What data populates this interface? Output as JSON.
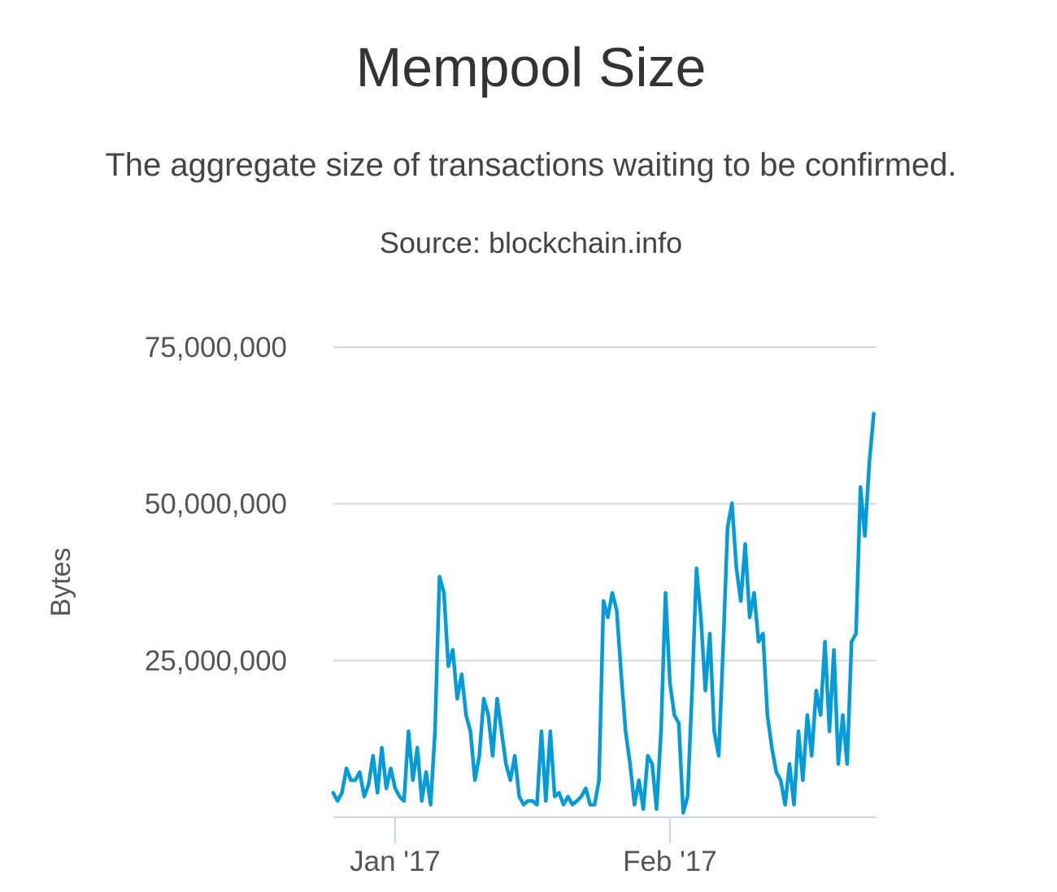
{
  "chart_data": {
    "type": "line",
    "title": "Mempool Size",
    "subtitle": "The aggregate size of transactions waiting to be confirmed.",
    "source": "Source: blockchain.info",
    "xlabel": "",
    "ylabel": "Bytes",
    "ylim": [
      0,
      75000000
    ],
    "yticks": [
      25000000,
      50000000,
      75000000
    ],
    "ytick_labels": [
      "25,000,000",
      "50,000,000",
      "75,000,000"
    ],
    "xlim": [
      "2016-12-25T00",
      "2017-02-24T00"
    ],
    "xticks": [
      "2017-01-01T00",
      "2017-02-01T00"
    ],
    "xtick_labels": [
      "Jan '17",
      "Feb '17"
    ],
    "grid": true,
    "legend": "none",
    "line_color": "#049cd8",
    "series": [
      {
        "points": [
          [
            "2016-12-25T00",
            3900000
          ],
          [
            "2016-12-25T12",
            2600000
          ],
          [
            "2016-12-26T00",
            3900000
          ],
          [
            "2016-12-26T12",
            7800000
          ],
          [
            "2016-12-27T00",
            5900000
          ],
          [
            "2016-12-27T12",
            5900000
          ],
          [
            "2016-12-28T00",
            7200000
          ],
          [
            "2016-12-28T12",
            3300000
          ],
          [
            "2016-12-29T00",
            5200000
          ],
          [
            "2016-12-29T12",
            9800000
          ],
          [
            "2016-12-30T00",
            3900000
          ],
          [
            "2016-12-30T12",
            11100000
          ],
          [
            "2016-12-31T00",
            4600000
          ],
          [
            "2016-12-31T12",
            7800000
          ],
          [
            "2017-01-01T00",
            4600000
          ],
          [
            "2017-01-01T12",
            3300000
          ],
          [
            "2017-01-02T00",
            2600000
          ],
          [
            "2017-01-02T12",
            13700000
          ],
          [
            "2017-01-03T00",
            5900000
          ],
          [
            "2017-01-03T12",
            11100000
          ],
          [
            "2017-01-04T00",
            2600000
          ],
          [
            "2017-01-04T12",
            7200000
          ],
          [
            "2017-01-05T00",
            2000000
          ],
          [
            "2017-01-05T12",
            13700000
          ],
          [
            "2017-01-06T00",
            38400000
          ],
          [
            "2017-01-06T12",
            35800000
          ],
          [
            "2017-01-07T00",
            24100000
          ],
          [
            "2017-01-07T12",
            26700000
          ],
          [
            "2017-01-08T00",
            18900000
          ],
          [
            "2017-01-08T12",
            22800000
          ],
          [
            "2017-01-09T00",
            16300000
          ],
          [
            "2017-01-09T12",
            13700000
          ],
          [
            "2017-01-10T00",
            5900000
          ],
          [
            "2017-01-10T12",
            9800000
          ],
          [
            "2017-01-11T00",
            18900000
          ],
          [
            "2017-01-11T12",
            16300000
          ],
          [
            "2017-01-12T00",
            9800000
          ],
          [
            "2017-01-12T12",
            18900000
          ],
          [
            "2017-01-13T00",
            13700000
          ],
          [
            "2017-01-13T12",
            8500000
          ],
          [
            "2017-01-14T00",
            5900000
          ],
          [
            "2017-01-14T12",
            9800000
          ],
          [
            "2017-01-15T00",
            3300000
          ],
          [
            "2017-01-15T12",
            2000000
          ],
          [
            "2017-01-16T00",
            2600000
          ],
          [
            "2017-01-16T12",
            2600000
          ],
          [
            "2017-01-17T00",
            2000000
          ],
          [
            "2017-01-17T12",
            13700000
          ],
          [
            "2017-01-18T00",
            2600000
          ],
          [
            "2017-01-18T12",
            13700000
          ],
          [
            "2017-01-19T00",
            3300000
          ],
          [
            "2017-01-19T12",
            3900000
          ],
          [
            "2017-01-20T00",
            2000000
          ],
          [
            "2017-01-20T12",
            3300000
          ],
          [
            "2017-01-21T00",
            2000000
          ],
          [
            "2017-01-21T12",
            2600000
          ],
          [
            "2017-01-22T00",
            3300000
          ],
          [
            "2017-01-22T12",
            4600000
          ],
          [
            "2017-01-23T00",
            2000000
          ],
          [
            "2017-01-23T12",
            2000000
          ],
          [
            "2017-01-24T00",
            5900000
          ],
          [
            "2017-01-24T12",
            34500000
          ],
          [
            "2017-01-25T00",
            31900000
          ],
          [
            "2017-01-25T12",
            35800000
          ],
          [
            "2017-01-26T00",
            33000000
          ],
          [
            "2017-01-26T12",
            22800000
          ],
          [
            "2017-01-27T00",
            13700000
          ],
          [
            "2017-01-27T12",
            8500000
          ],
          [
            "2017-01-28T00",
            2000000
          ],
          [
            "2017-01-28T12",
            5900000
          ],
          [
            "2017-01-29T00",
            1300000
          ],
          [
            "2017-01-29T12",
            9800000
          ],
          [
            "2017-01-30T00",
            8500000
          ],
          [
            "2017-01-30T12",
            1300000
          ],
          [
            "2017-01-31T00",
            13700000
          ],
          [
            "2017-01-31T12",
            35800000
          ],
          [
            "2017-02-01T00",
            21500000
          ],
          [
            "2017-02-01T12",
            16300000
          ],
          [
            "2017-02-02T00",
            15000000
          ],
          [
            "2017-02-02T12",
            700000
          ],
          [
            "2017-02-03T00",
            3300000
          ],
          [
            "2017-02-03T12",
            20200000
          ],
          [
            "2017-02-04T00",
            39700000
          ],
          [
            "2017-02-04T12",
            31900000
          ],
          [
            "2017-02-05T00",
            20200000
          ],
          [
            "2017-02-05T12",
            29300000
          ],
          [
            "2017-02-06T00",
            13700000
          ],
          [
            "2017-02-06T12",
            9800000
          ],
          [
            "2017-02-07T00",
            26700000
          ],
          [
            "2017-02-07T12",
            46200000
          ],
          [
            "2017-02-08T00",
            50100000
          ],
          [
            "2017-02-08T12",
            39700000
          ],
          [
            "2017-02-09T00",
            34500000
          ],
          [
            "2017-02-09T12",
            43600000
          ],
          [
            "2017-02-10T00",
            31900000
          ],
          [
            "2017-02-10T12",
            35800000
          ],
          [
            "2017-02-11T00",
            28000000
          ],
          [
            "2017-02-11T12",
            29300000
          ],
          [
            "2017-02-12T00",
            16300000
          ],
          [
            "2017-02-12T12",
            11100000
          ],
          [
            "2017-02-13T00",
            7200000
          ],
          [
            "2017-02-13T12",
            5900000
          ],
          [
            "2017-02-14T00",
            2000000
          ],
          [
            "2017-02-14T12",
            8500000
          ],
          [
            "2017-02-15T00",
            2000000
          ],
          [
            "2017-02-15T12",
            13700000
          ],
          [
            "2017-02-16T00",
            5900000
          ],
          [
            "2017-02-16T12",
            16300000
          ],
          [
            "2017-02-17T00",
            9800000
          ],
          [
            "2017-02-17T12",
            20200000
          ],
          [
            "2017-02-18T00",
            16300000
          ],
          [
            "2017-02-18T12",
            28000000
          ],
          [
            "2017-02-19T00",
            13700000
          ],
          [
            "2017-02-19T12",
            26700000
          ],
          [
            "2017-02-20T00",
            8500000
          ],
          [
            "2017-02-20T12",
            16300000
          ],
          [
            "2017-02-21T00",
            8500000
          ],
          [
            "2017-02-21T12",
            28000000
          ],
          [
            "2017-02-22T00",
            29300000
          ],
          [
            "2017-02-22T12",
            52700000
          ],
          [
            "2017-02-23T00",
            44900000
          ],
          [
            "2017-02-23T12",
            56600000
          ],
          [
            "2017-02-24T00",
            64400000
          ]
        ]
      }
    ]
  }
}
